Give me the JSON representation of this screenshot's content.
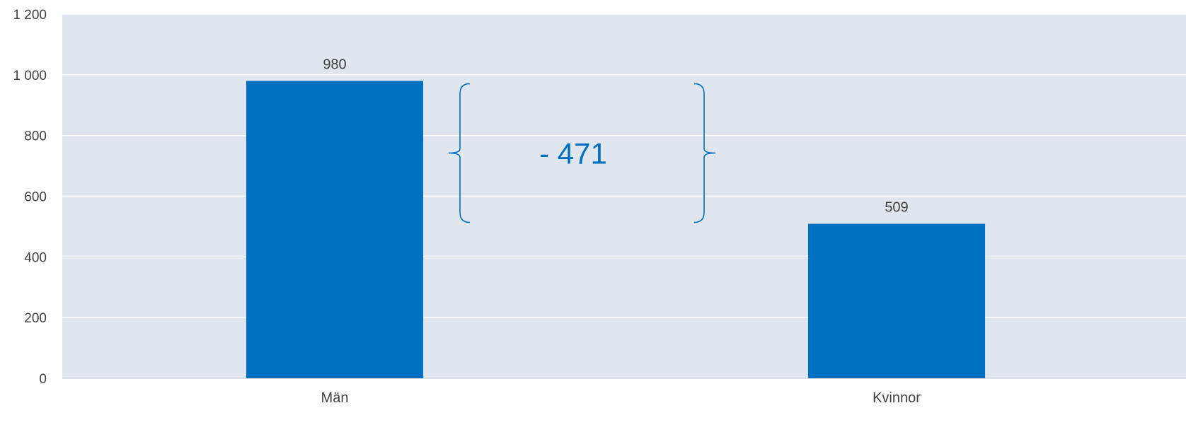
{
  "colors": {
    "bar": "#0070c0",
    "plot_bg": "#dfe6ed",
    "grid": "#ffffff",
    "text": "#404040",
    "annotation": "#0070c0"
  },
  "chart_data": {
    "type": "bar",
    "categories": [
      "Män",
      "Kvinnor"
    ],
    "values": [
      980,
      509
    ],
    "data_labels": [
      "980",
      "509"
    ],
    "ylim": [
      0,
      1200
    ],
    "yticks": [
      0,
      200,
      400,
      600,
      800,
      1000,
      1200
    ],
    "ytick_labels": [
      "0",
      "200",
      "400",
      "600",
      "800",
      "1 000",
      "1 200"
    ],
    "grid": true,
    "legend": "none",
    "annotations": [
      {
        "text": "- 471",
        "from": 980,
        "to": 509
      }
    ]
  }
}
